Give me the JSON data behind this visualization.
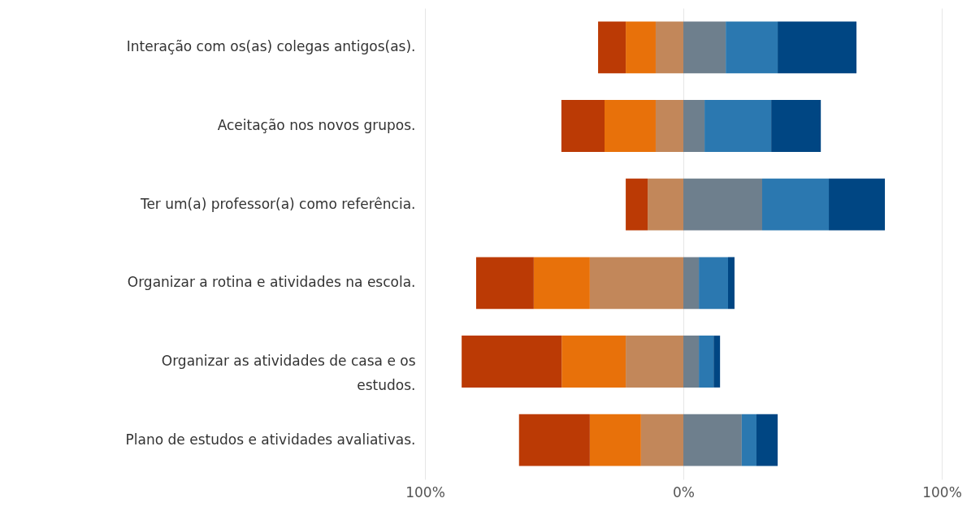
{
  "chart_data": {
    "type": "bar",
    "orientation": "horizontal",
    "stacked": true,
    "categories": [
      "Interação com os(as) colegas antigos(as).",
      "Aceitação nos novos grupos.",
      "Ter um(a) professor(a) como referência.",
      "Organizar a rotina e atividades na escola.",
      "Organizar as atividades de casa e os estudos.",
      "Plano de estudos e atividades avaliativas."
    ],
    "series": [
      {
        "color": "#c2875a",
        "values": [
          -10.7,
          -10.7,
          -13.8,
          -36.2,
          -22.3,
          -16.4
        ]
      },
      {
        "color": "#e8710a",
        "values": [
          -11.6,
          -19.8,
          0,
          -21.7,
          -24.8,
          -19.8
        ]
      },
      {
        "color": "#bb3a05",
        "values": [
          -10.7,
          -16.7,
          -8.5,
          -22.3,
          -38.7,
          -27.4
        ]
      },
      {
        "color": "#6e7f8d",
        "values": [
          16.4,
          8.2,
          30.5,
          6.0,
          6.0,
          22.6
        ]
      },
      {
        "color": "#2b78b0",
        "values": [
          20.1,
          25.8,
          25.8,
          11.3,
          5.7,
          5.7
        ]
      },
      {
        "color": "#004683",
        "values": [
          30.5,
          19.2,
          21.7,
          2.5,
          2.5,
          8.2
        ]
      }
    ],
    "xlim": [
      -100,
      100
    ],
    "xticks": [
      {
        "value": -100,
        "label": "100%"
      },
      {
        "value": 0,
        "label": "0%"
      },
      {
        "value": 100,
        "label": "100%"
      }
    ],
    "grid": "x"
  }
}
